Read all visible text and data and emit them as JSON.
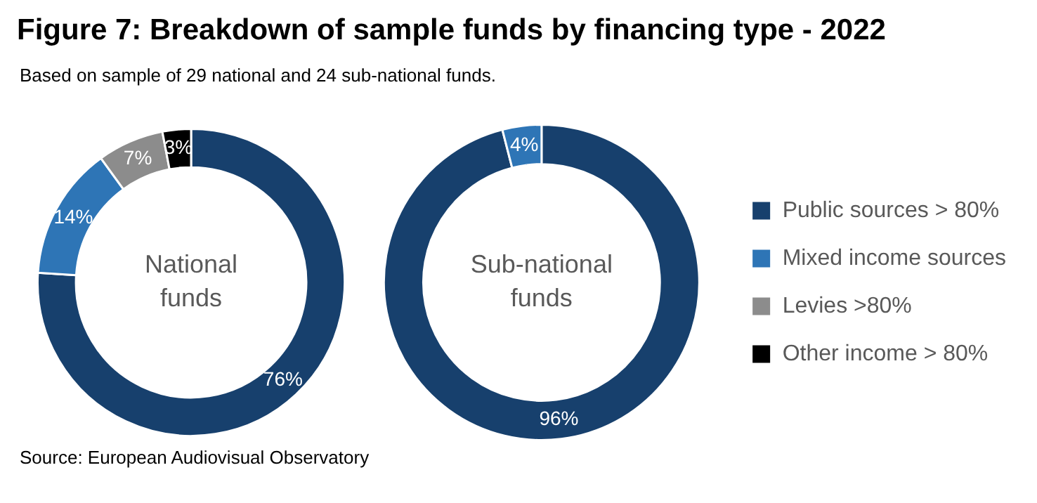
{
  "chart_data": {
    "type": "donut",
    "title": "Figure 7: Breakdown of sample funds by financing type - 2022",
    "subtitle": "Based on sample of 29 national and 24 sub-national funds.",
    "annotations": [
      "Source: European Audiovisual Observatory"
    ],
    "categories": [
      "Public sources > 80%",
      "Mixed income sources",
      "Levies >80%",
      "Other income > 80%"
    ],
    "colors": [
      "#17406d",
      "#2e75b6",
      "#8c8c8c",
      "#000000"
    ],
    "legend": "right",
    "series": [
      {
        "name": "National funds",
        "values": [
          76,
          14,
          7,
          3
        ],
        "value_labels": [
          "76%",
          "14%",
          "7%",
          "3%"
        ]
      },
      {
        "name": "Sub-national funds",
        "values": [
          96,
          4,
          0,
          0
        ],
        "value_labels": [
          "96%",
          "4%",
          null,
          null
        ]
      }
    ]
  }
}
